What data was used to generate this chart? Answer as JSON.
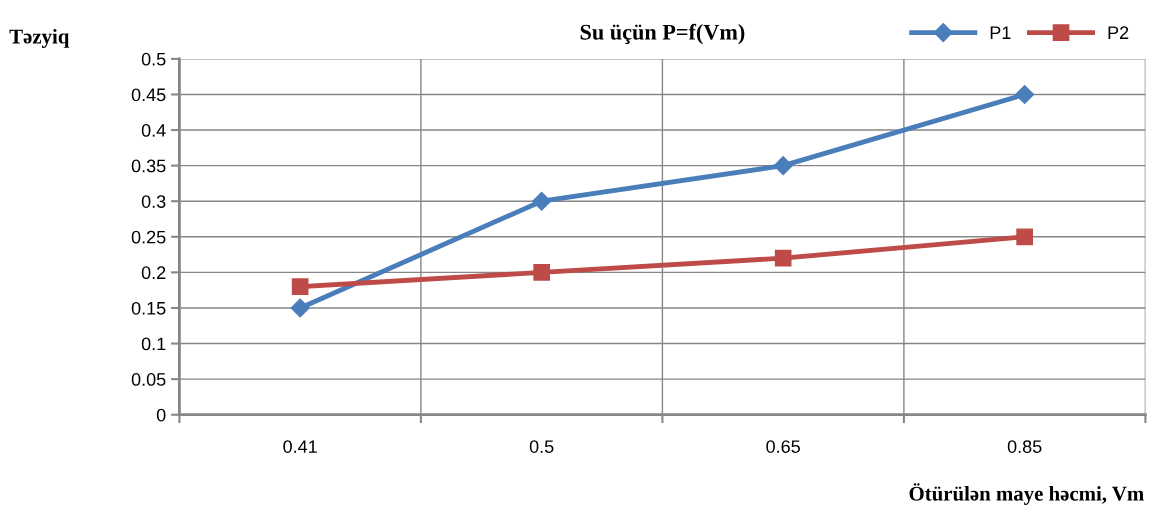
{
  "chart_data": {
    "type": "line",
    "title": "Su üçün P=f(Vm)",
    "xlabel": "Ötürülən maye həcmi, Vm",
    "ylabel": "Təzyiq",
    "categories": [
      "0.41",
      "0.5",
      "0.65",
      "0.85"
    ],
    "series": [
      {
        "name": "P1",
        "color": "#4a7ebb",
        "marker": "diamond",
        "values": [
          0.15,
          0.3,
          0.35,
          0.45
        ]
      },
      {
        "name": "P2",
        "color": "#be4b48",
        "marker": "square",
        "values": [
          0.18,
          0.2,
          0.22,
          0.25
        ]
      }
    ],
    "ylim": [
      0,
      0.5
    ],
    "yticks": [
      0,
      0.05,
      0.1,
      0.15,
      0.2,
      0.25,
      0.3,
      0.35,
      0.4,
      0.45,
      0.5
    ],
    "grid": true,
    "legend": "top right",
    "line_style": "solid"
  }
}
